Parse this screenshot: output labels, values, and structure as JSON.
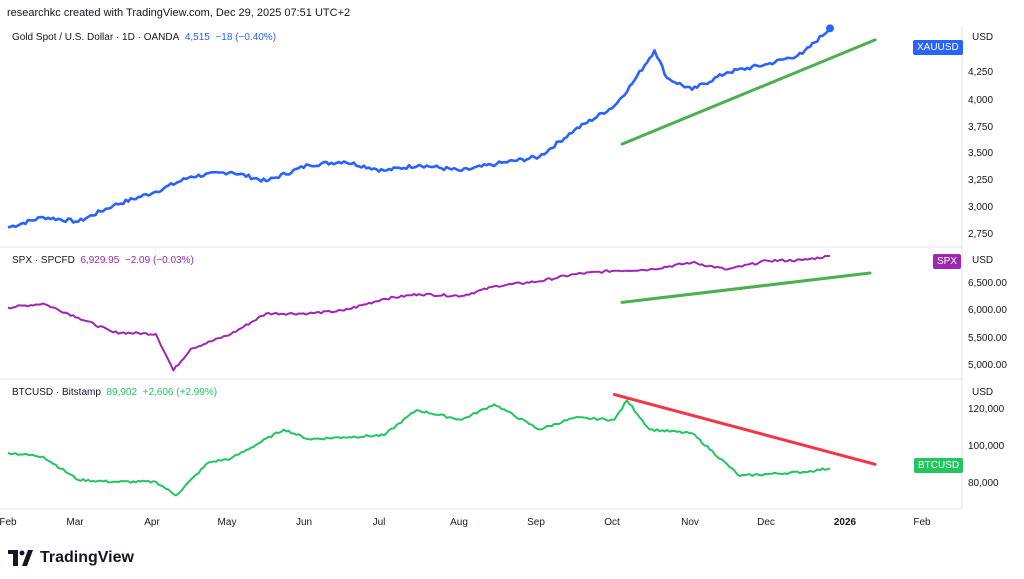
{
  "header": {
    "credit": "researchkc created with TradingView.com, Dec 29, 2025 07:51 UTC+2"
  },
  "footer": {
    "brand": "TradingView"
  },
  "colors": {
    "gold": "#2962ff",
    "spx": "#9c27b0",
    "btc": "#22c55e",
    "trend_up": "#4caf50",
    "trend_down": "#f23645",
    "grid": "#e0e3eb"
  },
  "panes": [
    {
      "symbol": "Gold Spot / U.S. Dollar · 1D · OANDA",
      "value": "4,515",
      "change": "−18 (−0.40%)",
      "unit": "USD",
      "badge": "XAUUSD",
      "color": "#2962ff",
      "yticks": [
        "4,250",
        "4,000",
        "3,750",
        "3,500",
        "3,250",
        "3,000",
        "2,750"
      ]
    },
    {
      "symbol": "SPX · SPCFD",
      "value": "6,929.95",
      "change": "−2.09 (−0.03%)",
      "unit": "USD",
      "badge": "SPX",
      "color": "#9c27b0",
      "yticks": [
        "6,500.00",
        "6,000.00",
        "5,500.00",
        "5,000.00"
      ]
    },
    {
      "symbol": "BTCUSD · Bitstamp",
      "value": "89,902",
      "change": "+2,606 (+2.99%)",
      "unit": "USD",
      "badge": "BTCUSD",
      "color": "#22c55e",
      "yticks": [
        "120,000",
        "100,000",
        "80,000"
      ]
    }
  ],
  "xaxis": {
    "labels": [
      "Feb",
      "Mar",
      "Apr",
      "May",
      "Jun",
      "Jul",
      "Aug",
      "Sep",
      "Oct",
      "Nov",
      "Dec",
      "2026",
      "Feb"
    ]
  },
  "chart_data": [
    {
      "type": "line",
      "series": [
        {
          "name": "XAUUSD",
          "unit": "USD"
        }
      ],
      "x": [
        "2025-02-01",
        "2025-02-15",
        "2025-03-01",
        "2025-03-15",
        "2025-04-01",
        "2025-04-15",
        "2025-05-01",
        "2025-05-15",
        "2025-06-01",
        "2025-06-15",
        "2025-07-01",
        "2025-07-15",
        "2025-08-01",
        "2025-08-15",
        "2025-09-01",
        "2025-09-15",
        "2025-10-01",
        "2025-10-08",
        "2025-10-17",
        "2025-10-22",
        "2025-11-01",
        "2025-11-15",
        "2025-12-01",
        "2025-12-15",
        "2025-12-26"
      ],
      "y": [
        2810,
        2900,
        2860,
        3000,
        3120,
        3250,
        3290,
        3210,
        3350,
        3380,
        3300,
        3350,
        3300,
        3360,
        3420,
        3650,
        3860,
        4050,
        4340,
        4100,
        4000,
        4150,
        4220,
        4310,
        4530
      ],
      "ylim": [
        2650,
        4550
      ],
      "trendline": {
        "direction": "up",
        "from": [
          "2025-10-04",
          3530
        ],
        "to": [
          "2026-01-13",
          4430
        ]
      }
    },
    {
      "type": "line",
      "series": [
        {
          "name": "SPX",
          "unit": "USD"
        }
      ],
      "x": [
        "2025-02-01",
        "2025-02-15",
        "2025-03-01",
        "2025-03-15",
        "2025-04-01",
        "2025-04-08",
        "2025-04-15",
        "2025-05-01",
        "2025-05-15",
        "2025-06-01",
        "2025-06-15",
        "2025-07-01",
        "2025-07-15",
        "2025-08-01",
        "2025-08-15",
        "2025-09-01",
        "2025-09-15",
        "2025-10-01",
        "2025-10-15",
        "2025-11-01",
        "2025-11-15",
        "2025-12-01",
        "2025-12-15",
        "2025-12-26"
      ],
      "y": [
        6050,
        6120,
        5880,
        5630,
        5600,
        4980,
        5350,
        5600,
        5950,
        5950,
        6000,
        6200,
        6280,
        6250,
        6420,
        6500,
        6620,
        6680,
        6700,
        6820,
        6700,
        6850,
        6860,
        6930
      ],
      "ylim": [
        4850,
        7050
      ],
      "trendline": {
        "direction": "up",
        "from": [
          "2025-10-04",
          6140
        ],
        "to": [
          "2026-01-11",
          6640
        ]
      }
    },
    {
      "type": "line",
      "series": [
        {
          "name": "BTCUSD",
          "unit": "USD"
        }
      ],
      "x": [
        "2025-02-01",
        "2025-02-15",
        "2025-03-01",
        "2025-03-15",
        "2025-04-01",
        "2025-04-09",
        "2025-04-22",
        "2025-05-01",
        "2025-05-22",
        "2025-06-01",
        "2025-06-15",
        "2025-07-01",
        "2025-07-14",
        "2025-08-01",
        "2025-08-14",
        "2025-09-01",
        "2025-09-15",
        "2025-10-01",
        "2025-10-06",
        "2025-10-15",
        "2025-11-01",
        "2025-11-20",
        "2025-12-01",
        "2025-12-15",
        "2025-12-26"
      ],
      "y": [
        98000,
        96000,
        84000,
        83000,
        83000,
        76000,
        93000,
        95000,
        110000,
        105000,
        106000,
        107000,
        120000,
        115000,
        123000,
        110000,
        116000,
        115000,
        125000,
        110000,
        108000,
        86000,
        87000,
        88000,
        89900
      ],
      "ylim": [
        70000,
        135000
      ],
      "trendline": {
        "direction": "down",
        "from": [
          "2025-10-01",
          128000
        ],
        "to": [
          "2026-01-13",
          92000
        ]
      }
    }
  ]
}
